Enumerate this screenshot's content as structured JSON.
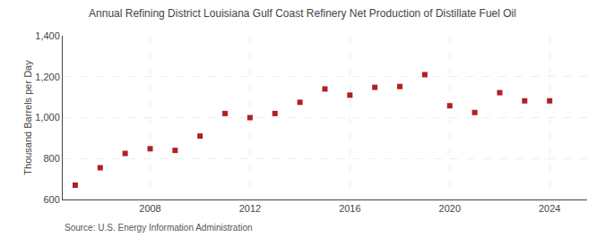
{
  "chart_data": {
    "type": "scatter",
    "title": "Annual Refining District Louisiana Gulf Coast Refinery Net Production of Distillate Fuel Oil",
    "ylabel": "Thousand Barrels per Day",
    "source": "Source: U.S. Energy Information Administration",
    "x": [
      2005,
      2006,
      2007,
      2008,
      2009,
      2010,
      2011,
      2012,
      2013,
      2014,
      2015,
      2016,
      2017,
      2018,
      2019,
      2020,
      2021,
      2022,
      2023,
      2024
    ],
    "values": [
      670,
      755,
      825,
      848,
      840,
      910,
      1020,
      1000,
      1020,
      1075,
      1140,
      1110,
      1148,
      1152,
      1210,
      1058,
      1025,
      1122,
      1082,
      1082
    ],
    "color": "#b22020",
    "marker": "square",
    "xlim": [
      2004.5,
      2025.5
    ],
    "xticks": [
      2008,
      2012,
      2016,
      2020,
      2024
    ],
    "ylim": [
      600,
      1400
    ],
    "yticks": [
      600,
      800,
      {
        "value": 1000,
        "label": "1,000"
      },
      {
        "value": 1200,
        "label": "1,200"
      },
      {
        "value": 1400,
        "label": "1,400"
      }
    ],
    "grid": true
  }
}
